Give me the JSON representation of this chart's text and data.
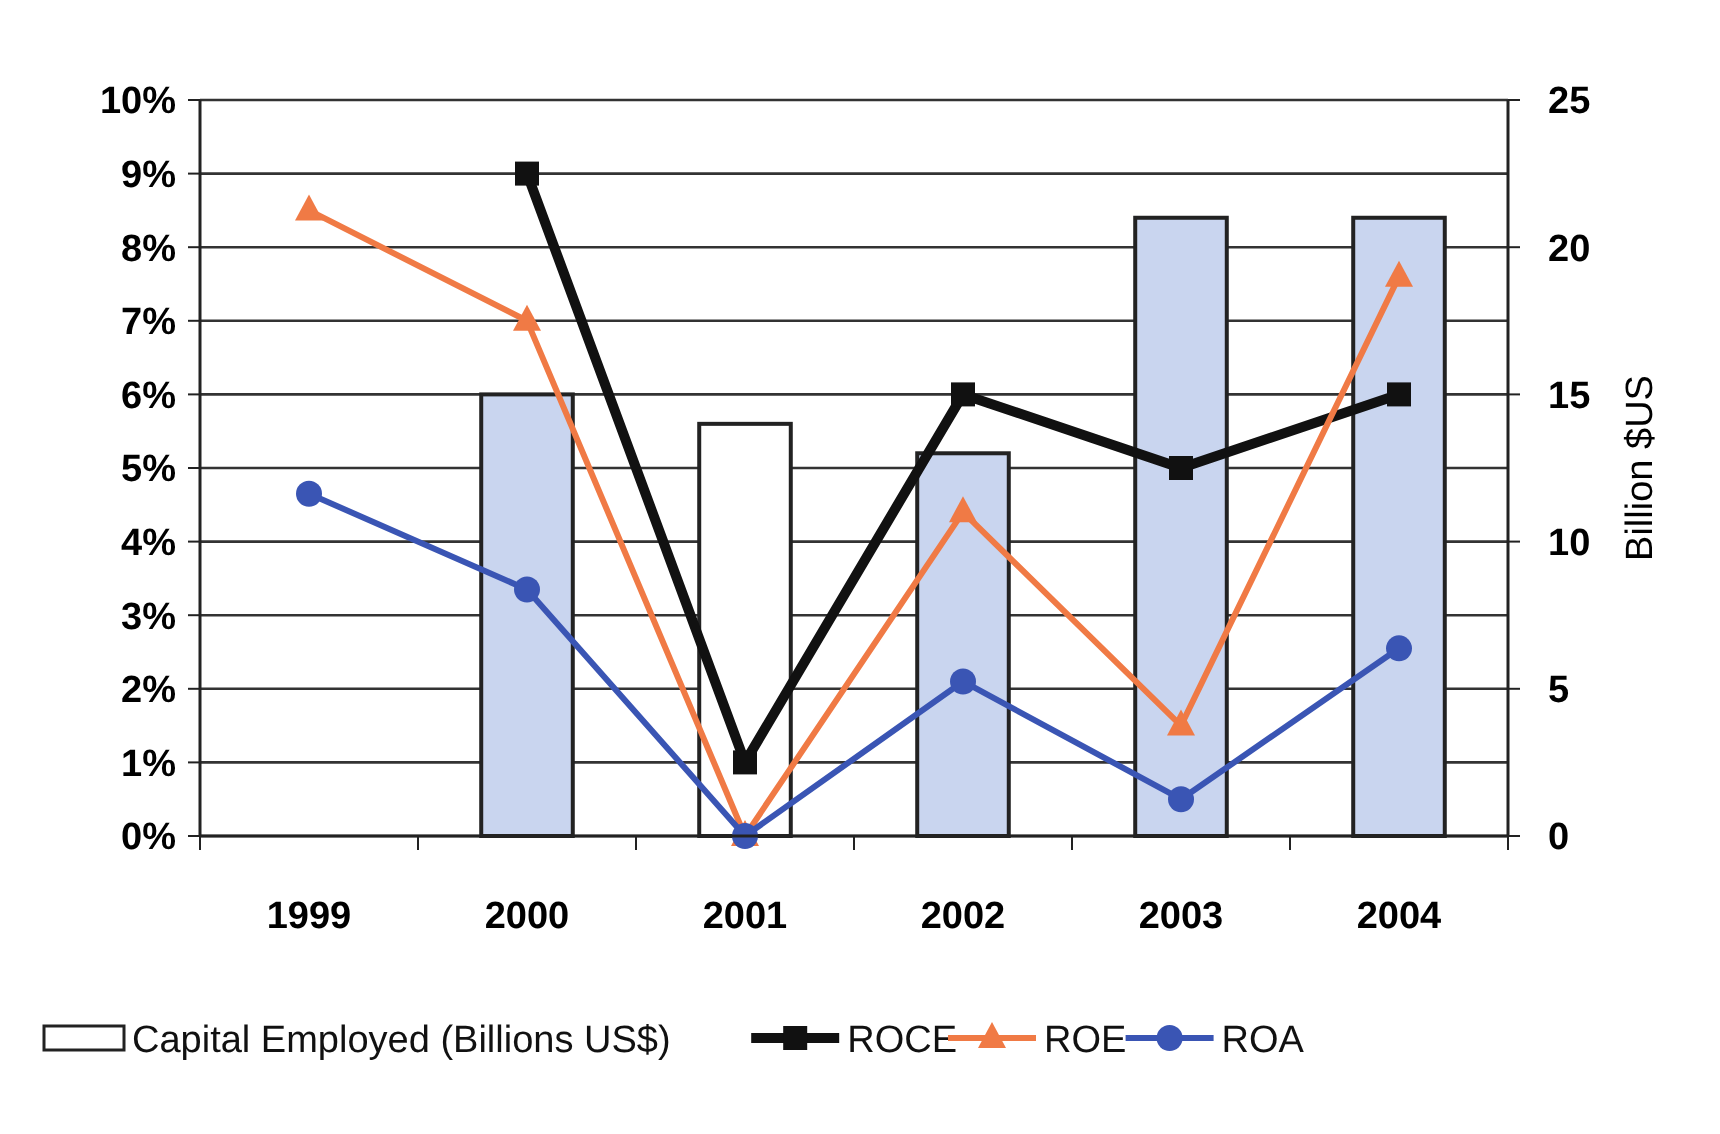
{
  "chart_data": {
    "type": "line",
    "categories": [
      "1999",
      "2000",
      "2001",
      "2002",
      "2003",
      "2004"
    ],
    "series": [
      {
        "name": "Capital Employed (Billions US$)",
        "type": "bar",
        "axis": "y2",
        "color": "#ffffff",
        "colors": [
          null,
          "#c9d5ef",
          "#ffffff",
          "#c9d5ef",
          "#c9d5ef",
          "#c9d5ef"
        ],
        "values": [
          null,
          15,
          14,
          13,
          21,
          21
        ]
      },
      {
        "name": "ROCE",
        "color": "#111111",
        "marker": "square",
        "values": [
          null,
          9,
          1,
          6,
          5,
          6
        ]
      },
      {
        "name": "ROE",
        "color": "#f07a45",
        "marker": "triangle",
        "values": [
          8.5,
          7,
          0,
          4.4,
          1.5,
          7.6
        ]
      },
      {
        "name": "ROA",
        "color": "#3a55b4",
        "marker": "circle",
        "values": [
          4.65,
          3.35,
          0,
          2.1,
          0.5,
          2.55
        ]
      }
    ],
    "ylim": [
      0,
      10
    ],
    "yticks": [
      {
        "value": 0,
        "label": "0%"
      },
      {
        "value": 1,
        "label": "1%"
      },
      {
        "value": 2,
        "label": "2%"
      },
      {
        "value": 3,
        "label": "3%"
      },
      {
        "value": 4,
        "label": "4%"
      },
      {
        "value": 5,
        "label": "5%"
      },
      {
        "value": 6,
        "label": "6%"
      },
      {
        "value": 7,
        "label": "7%"
      },
      {
        "value": 8,
        "label": "8%"
      },
      {
        "value": 9,
        "label": "9%"
      },
      {
        "value": 10,
        "label": "10%"
      }
    ],
    "y2lim": [
      0,
      25
    ],
    "y2ticks": [
      0,
      5,
      10,
      15,
      20,
      25
    ],
    "y2label": "Billion $US",
    "grid": "y",
    "legend": "bottom"
  }
}
